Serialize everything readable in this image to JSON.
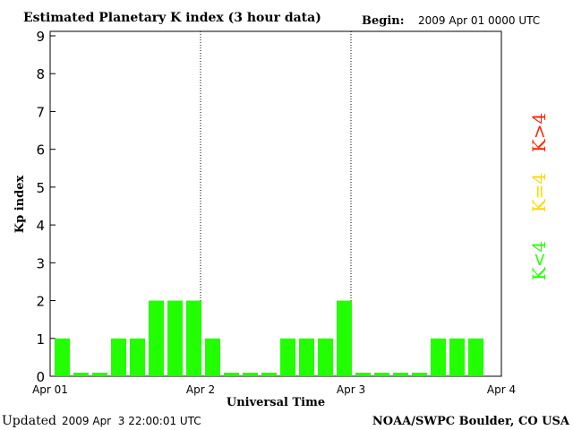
{
  "chart_data": {
    "type": "bar",
    "title": "Estimated Planetary K index (3 hour data)",
    "begin_label": "Begin:",
    "begin_value": "2009 Apr 01 0000 UTC",
    "xlabel": "Universal Time",
    "ylabel": "Kp index",
    "ylim": [
      0,
      9
    ],
    "y_ticks": [
      "0",
      "1",
      "2",
      "3",
      "4",
      "5",
      "6",
      "7",
      "8",
      "9"
    ],
    "x_ticks": [
      "Apr 01",
      "Apr 2",
      "Apr 3",
      "Apr 4"
    ],
    "day_dividers": [
      "Apr 2",
      "Apr 3"
    ],
    "values": [
      1,
      0,
      0,
      1,
      1,
      2,
      2,
      2,
      1,
      0,
      0,
      0,
      1,
      1,
      1,
      2,
      0,
      0,
      0,
      0,
      1,
      1,
      1
    ],
    "bar_color": "#22ff00",
    "grid": false,
    "legend": {
      "placement": "right",
      "items": [
        {
          "label": "K<4",
          "color": "#22ff00"
        },
        {
          "label": "K=4",
          "color": "#ffd700"
        },
        {
          "label": "K>4",
          "color": "#ff2200"
        }
      ]
    }
  },
  "footer": {
    "updated_label": "Updated",
    "updated_value": "2009 Apr  3 22:00:01 UTC",
    "source": "NOAA/SWPC Boulder, CO USA"
  }
}
